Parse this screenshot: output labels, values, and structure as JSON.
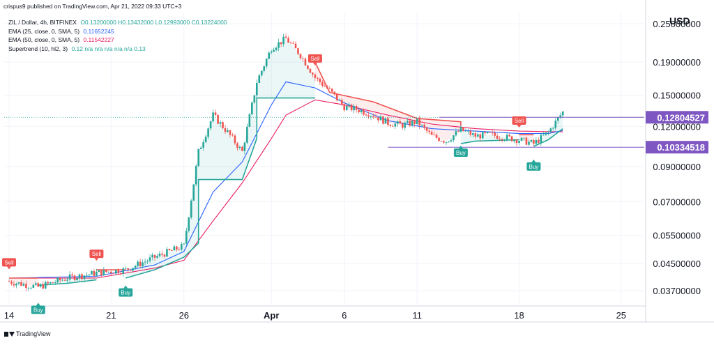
{
  "header": {
    "text": "crispus9 published on TradingView.com, Apr 21, 2022 09:33 UTC+3"
  },
  "legend": {
    "symbol": "ZIL / Dollar, 4h, BITFINEX",
    "ohlc": "O0.13200000  H0.13432000  L0.12993000  C0.13224000",
    "ema25_label": "EMA (25, close, 0, SMA, 5)",
    "ema25_value": "0.11652245",
    "ema50_label": "EMA (50, close, 0, SMA, 5)",
    "ema50_value": "0.11542227",
    "supertrend_label": "Supertrend (10, hl2, 3)",
    "supertrend_values": "0.12  n/a  n/a  n/a  n/a  n/a  0.13"
  },
  "currency": "USD",
  "footer": {
    "brand": "TradingView"
  },
  "colors": {
    "up": "#26a69a",
    "down": "#ef5350",
    "ema25": "#2962ff",
    "ema50": "#e91e63",
    "st_up": "#26a69a",
    "st_down": "#ef5350",
    "hline": "#7e57c2",
    "grid": "#f0f3fa"
  },
  "chart_data": {
    "type": "candlestick",
    "scale": "log",
    "ylim": [
      0.0335,
      0.271
    ],
    "y_ticks": [
      "0.25000000",
      "0.19000000",
      "0.15000000",
      "0.12000000",
      "0.09000000",
      "0.07000000",
      "0.05500000",
      "0.04500000",
      "0.03700000"
    ],
    "x_ticks": [
      "14",
      "21",
      "26",
      "Apr",
      "6",
      "11",
      "18",
      "25"
    ],
    "current_price_label": "0.12804527",
    "support_label": "0.10334518",
    "markers": [
      {
        "label": "Sell",
        "type": "sell",
        "date": "Mar 14"
      },
      {
        "label": "Buy",
        "type": "buy",
        "date": "Mar 16"
      },
      {
        "label": "Sell",
        "type": "sell",
        "date": "Mar 20"
      },
      {
        "label": "Buy",
        "type": "buy",
        "date": "Mar 22"
      },
      {
        "label": "Sell",
        "type": "sell",
        "date": "Apr 4"
      },
      {
        "label": "Buy",
        "type": "buy",
        "date": "Apr 14"
      },
      {
        "label": "Sell",
        "type": "sell",
        "date": "Apr 18"
      },
      {
        "label": "Buy",
        "type": "buy",
        "date": "Apr 19"
      }
    ],
    "price_path": [
      [
        "Mar 14",
        0.0395
      ],
      [
        "Mar 16",
        0.038
      ],
      [
        "Mar 18",
        0.0405
      ],
      [
        "Mar 20",
        0.042
      ],
      [
        "Mar 22",
        0.043
      ],
      [
        "Mar 24",
        0.047
      ],
      [
        "Mar 25",
        0.049
      ],
      [
        "Mar 26",
        0.051
      ],
      [
        "Mar 27",
        0.1
      ],
      [
        "Mar 28",
        0.13
      ],
      [
        "Mar 29",
        0.115
      ],
      [
        "Mar 30",
        0.1
      ],
      [
        "Mar 31",
        0.165
      ],
      [
        "Apr 1",
        0.21
      ],
      [
        "Apr 2",
        0.225
      ],
      [
        "Apr 3",
        0.2
      ],
      [
        "Apr 4",
        0.17
      ],
      [
        "Apr 5",
        0.155
      ],
      [
        "Apr 6",
        0.138
      ],
      [
        "Apr 7",
        0.135
      ],
      [
        "Apr 8",
        0.13
      ],
      [
        "Apr 9",
        0.123
      ],
      [
        "Apr 10",
        0.121
      ],
      [
        "Apr 11",
        0.124
      ],
      [
        "Apr 12",
        0.112
      ],
      [
        "Apr 13",
        0.108
      ],
      [
        "Apr 14",
        0.117
      ],
      [
        "Apr 15",
        0.112
      ],
      [
        "Apr 16",
        0.113
      ],
      [
        "Apr 17",
        0.111
      ],
      [
        "Apr 18",
        0.109
      ],
      [
        "Apr 19",
        0.106
      ],
      [
        "Apr 20",
        0.115
      ],
      [
        "Apr 21",
        0.133
      ]
    ],
    "ema25": [
      [
        "Mar 14",
        0.0405
      ],
      [
        "Mar 20",
        0.041
      ],
      [
        "Mar 24",
        0.0445
      ],
      [
        "Mar 26",
        0.049
      ],
      [
        "Mar 28",
        0.075
      ],
      [
        "Mar 30",
        0.093
      ],
      [
        "Apr 1",
        0.14
      ],
      [
        "Apr 2",
        0.165
      ],
      [
        "Apr 4",
        0.158
      ],
      [
        "Apr 6",
        0.142
      ],
      [
        "Apr 9",
        0.125
      ],
      [
        "Apr 12",
        0.118
      ],
      [
        "Apr 15",
        0.116
      ],
      [
        "Apr 18",
        0.114
      ],
      [
        "Apr 20",
        0.114
      ],
      [
        "Apr 21",
        0.1165
      ]
    ],
    "ema50": [
      [
        "Mar 14",
        0.0405
      ],
      [
        "Mar 20",
        0.0405
      ],
      [
        "Mar 24",
        0.0435
      ],
      [
        "Mar 26",
        0.046
      ],
      [
        "Mar 28",
        0.061
      ],
      [
        "Mar 30",
        0.08
      ],
      [
        "Apr 1",
        0.11
      ],
      [
        "Apr 2",
        0.13
      ],
      [
        "Apr 4",
        0.145
      ],
      [
        "Apr 6",
        0.14
      ],
      [
        "Apr 9",
        0.13
      ],
      [
        "Apr 12",
        0.122
      ],
      [
        "Apr 15",
        0.118
      ],
      [
        "Apr 18",
        0.116
      ],
      [
        "Apr 20",
        0.1155
      ],
      [
        "Apr 21",
        0.1154
      ]
    ],
    "supertrend": [
      {
        "dir": "down",
        "points": [
          [
            "Mar 14",
            0.0405
          ],
          [
            "Mar 16",
            0.0405
          ]
        ]
      },
      {
        "dir": "up",
        "points": [
          [
            "Mar 16",
            0.0385
          ],
          [
            "Mar 18",
            0.039
          ],
          [
            "Mar 20",
            0.04
          ]
        ]
      },
      {
        "dir": "down",
        "points": [
          [
            "Mar 20",
            0.043
          ],
          [
            "Mar 22",
            0.043
          ]
        ]
      },
      {
        "dir": "up",
        "points": [
          [
            "Mar 22",
            0.0405
          ],
          [
            "Mar 24",
            0.043
          ],
          [
            "Mar 26",
            0.047
          ],
          [
            "Mar 27",
            0.052
          ],
          [
            "Mar 27",
            0.082
          ],
          [
            "Mar 30",
            0.082
          ],
          [
            "Mar 31",
            0.11
          ],
          [
            "Mar 31",
            0.147
          ],
          [
            "Apr 4",
            0.147
          ]
        ]
      },
      {
        "dir": "down",
        "points": [
          [
            "Apr 4",
            0.19
          ],
          [
            "Apr 5",
            0.153
          ],
          [
            "Apr 8",
            0.143
          ],
          [
            "Apr 11",
            0.127
          ],
          [
            "Apr 14",
            0.124
          ],
          [
            "Apr 14",
            0.12
          ]
        ]
      },
      {
        "dir": "up",
        "points": [
          [
            "Apr 14",
            0.106
          ],
          [
            "Apr 15",
            0.108
          ],
          [
            "Apr 18",
            0.109
          ]
        ]
      },
      {
        "dir": "down",
        "points": [
          [
            "Apr 18",
            0.113
          ],
          [
            "Apr 19",
            0.113
          ]
        ]
      },
      {
        "dir": "up",
        "points": [
          [
            "Apr 19",
            0.104
          ],
          [
            "Apr 20",
            0.109
          ],
          [
            "Apr 21",
            0.118
          ]
        ]
      }
    ]
  }
}
